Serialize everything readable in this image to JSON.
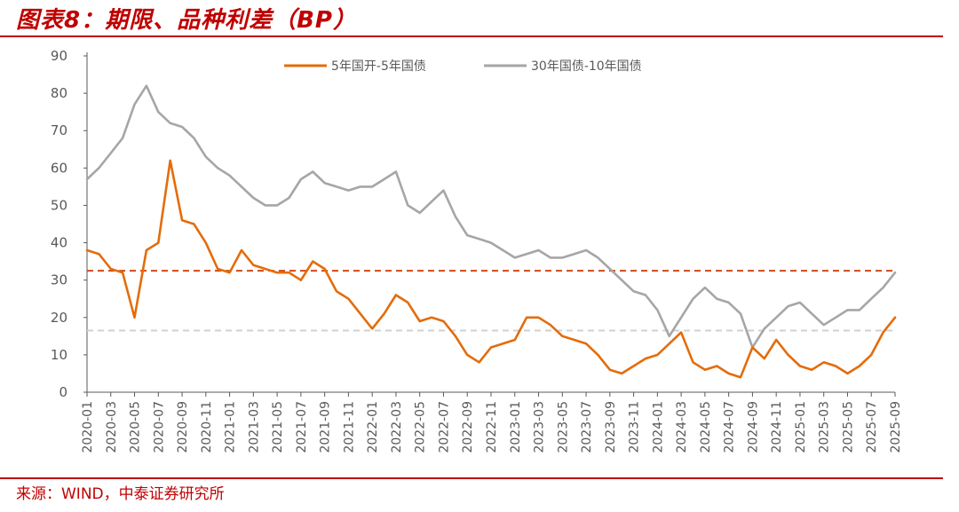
{
  "header": {
    "title": "图表8：期限、品种利差（BP）"
  },
  "footer": {
    "source": "来源：WIND，中泰证券研究所"
  },
  "colors": {
    "brand": "#c00000",
    "series_orange": "#E46C0A",
    "series_gray": "#A6A6A6",
    "ref_red": "#D34817",
    "ref_gray": "#D0D0D0"
  },
  "chart_data": {
    "type": "line",
    "title": "期限、品种利差（BP）",
    "xlabel": "",
    "ylabel": "",
    "ylim": [
      0,
      90
    ],
    "yticks": [
      0,
      10,
      20,
      30,
      40,
      50,
      60,
      70,
      80,
      90
    ],
    "x_start": "2020-01",
    "x_end": "2025-09",
    "xticks": [
      "2020-01",
      "2020-03",
      "2020-05",
      "2020-07",
      "2020-09",
      "2020-11",
      "2021-01",
      "2021-03",
      "2021-05",
      "2021-07",
      "2021-09",
      "2021-11",
      "2022-01",
      "2022-03",
      "2022-05",
      "2022-07",
      "2022-09",
      "2022-11",
      "2023-01",
      "2023-03",
      "2023-05",
      "2023-07",
      "2023-09",
      "2023-11",
      "2024-01",
      "2024-03",
      "2024-05",
      "2024-07",
      "2024-09",
      "2024-11",
      "2025-01",
      "2025-03",
      "2025-05",
      "2025-07",
      "2025-09"
    ],
    "legend_position": "top",
    "reference_lines": [
      {
        "value": 32.5,
        "color": "#D34817",
        "style": "dashed"
      },
      {
        "value": 16.5,
        "color": "#D0D0D0",
        "style": "dashed"
      }
    ],
    "series": [
      {
        "name": "5年国开-5年国债",
        "color": "#E46C0A",
        "x": [
          "2020-01",
          "2020-02",
          "2020-03",
          "2020-04",
          "2020-05",
          "2020-06",
          "2020-07",
          "2020-08",
          "2020-09",
          "2020-10",
          "2020-11",
          "2020-12",
          "2021-01",
          "2021-02",
          "2021-03",
          "2021-04",
          "2021-05",
          "2021-06",
          "2021-07",
          "2021-08",
          "2021-09",
          "2021-10",
          "2021-11",
          "2021-12",
          "2022-01",
          "2022-02",
          "2022-03",
          "2022-04",
          "2022-05",
          "2022-06",
          "2022-07",
          "2022-08",
          "2022-09",
          "2022-10",
          "2022-11",
          "2022-12",
          "2023-01",
          "2023-02",
          "2023-03",
          "2023-04",
          "2023-05",
          "2023-06",
          "2023-07",
          "2023-08",
          "2023-09",
          "2023-10",
          "2023-11",
          "2023-12",
          "2024-01",
          "2024-02",
          "2024-03",
          "2024-04",
          "2024-05",
          "2024-06",
          "2024-07",
          "2024-08",
          "2024-09",
          "2024-10",
          "2024-11",
          "2024-12",
          "2025-01",
          "2025-02",
          "2025-03",
          "2025-04",
          "2025-05",
          "2025-06",
          "2025-07",
          "2025-08",
          "2025-09"
        ],
        "values": [
          38,
          37,
          33,
          32,
          20,
          38,
          40,
          62,
          46,
          45,
          40,
          33,
          32,
          38,
          34,
          33,
          32,
          32,
          30,
          35,
          33,
          27,
          25,
          21,
          17,
          21,
          26,
          24,
          19,
          20,
          19,
          15,
          10,
          8,
          12,
          13,
          14,
          20,
          20,
          18,
          15,
          14,
          13,
          10,
          6,
          5,
          7,
          9,
          10,
          13,
          16,
          8,
          6,
          7,
          5,
          4,
          12,
          9,
          14,
          10,
          7,
          6,
          8,
          7,
          5,
          7,
          10,
          16,
          20
        ]
      },
      {
        "name": "30年国债-10年国债",
        "color": "#A6A6A6",
        "x": [
          "2020-01",
          "2020-02",
          "2020-03",
          "2020-04",
          "2020-05",
          "2020-06",
          "2020-07",
          "2020-08",
          "2020-09",
          "2020-10",
          "2020-11",
          "2020-12",
          "2021-01",
          "2021-02",
          "2021-03",
          "2021-04",
          "2021-05",
          "2021-06",
          "2021-07",
          "2021-08",
          "2021-09",
          "2021-10",
          "2021-11",
          "2021-12",
          "2022-01",
          "2022-02",
          "2022-03",
          "2022-04",
          "2022-05",
          "2022-06",
          "2022-07",
          "2022-08",
          "2022-09",
          "2022-10",
          "2022-11",
          "2022-12",
          "2023-01",
          "2023-02",
          "2023-03",
          "2023-04",
          "2023-05",
          "2023-06",
          "2023-07",
          "2023-08",
          "2023-09",
          "2023-10",
          "2023-11",
          "2023-12",
          "2024-01",
          "2024-02",
          "2024-03",
          "2024-04",
          "2024-05",
          "2024-06",
          "2024-07",
          "2024-08",
          "2024-09",
          "2024-10",
          "2024-11",
          "2024-12",
          "2025-01",
          "2025-02",
          "2025-03",
          "2025-04",
          "2025-05",
          "2025-06",
          "2025-07",
          "2025-08",
          "2025-09"
        ],
        "values": [
          57,
          60,
          64,
          68,
          77,
          82,
          75,
          72,
          71,
          68,
          63,
          60,
          58,
          55,
          52,
          50,
          50,
          52,
          57,
          59,
          56,
          55,
          54,
          55,
          55,
          57,
          59,
          50,
          48,
          51,
          54,
          47,
          42,
          41,
          40,
          38,
          36,
          37,
          38,
          36,
          36,
          37,
          38,
          36,
          33,
          30,
          27,
          26,
          22,
          15,
          20,
          25,
          28,
          25,
          24,
          21,
          12,
          17,
          20,
          23,
          24,
          21,
          18,
          20,
          22,
          22,
          25,
          28,
          32
        ]
      }
    ]
  }
}
